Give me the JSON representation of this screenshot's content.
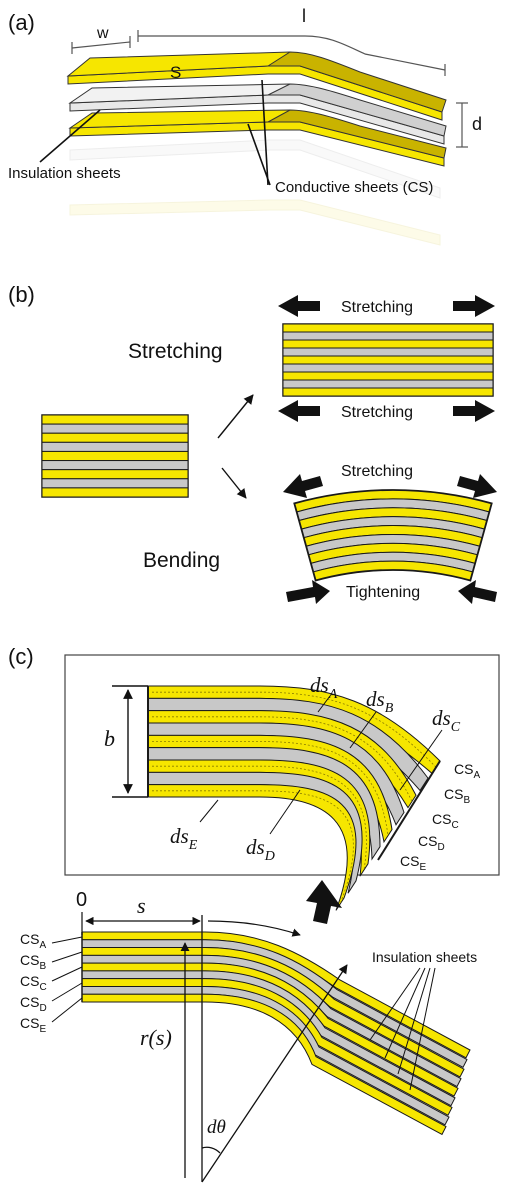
{
  "panel_a": {
    "tag": "(a)",
    "w": "w",
    "l": "l",
    "s": "S",
    "d": "d",
    "insulation": "Insulation sheets",
    "conductive": "Conductive sheets (CS)"
  },
  "panel_b": {
    "tag": "(b)",
    "stretching_label": "Stretching",
    "bending_label": "Bending",
    "arrow_top": "Stretching",
    "arrow_bottom": "Stretching",
    "bend_top": "Stretching",
    "bend_bottom": "Tightening"
  },
  "panel_c": {
    "tag": "(c)",
    "b": "b",
    "ds": [
      "ds",
      "ds",
      "ds",
      "ds",
      "ds"
    ],
    "ds_sub": [
      "A",
      "B",
      "C",
      "E",
      "D"
    ],
    "cs_main": "CS",
    "cs_sub": [
      "A",
      "B",
      "C",
      "D",
      "E"
    ],
    "zero": "0",
    "s": "s",
    "r": "r(s)",
    "dtheta": "dθ",
    "insulation": "Insulation sheets"
  },
  "colors": {
    "yellow": "#f6e600",
    "yellow_dark": "#c9b300",
    "gray": "#c8c8c8",
    "outline": "#1a1a1a"
  }
}
